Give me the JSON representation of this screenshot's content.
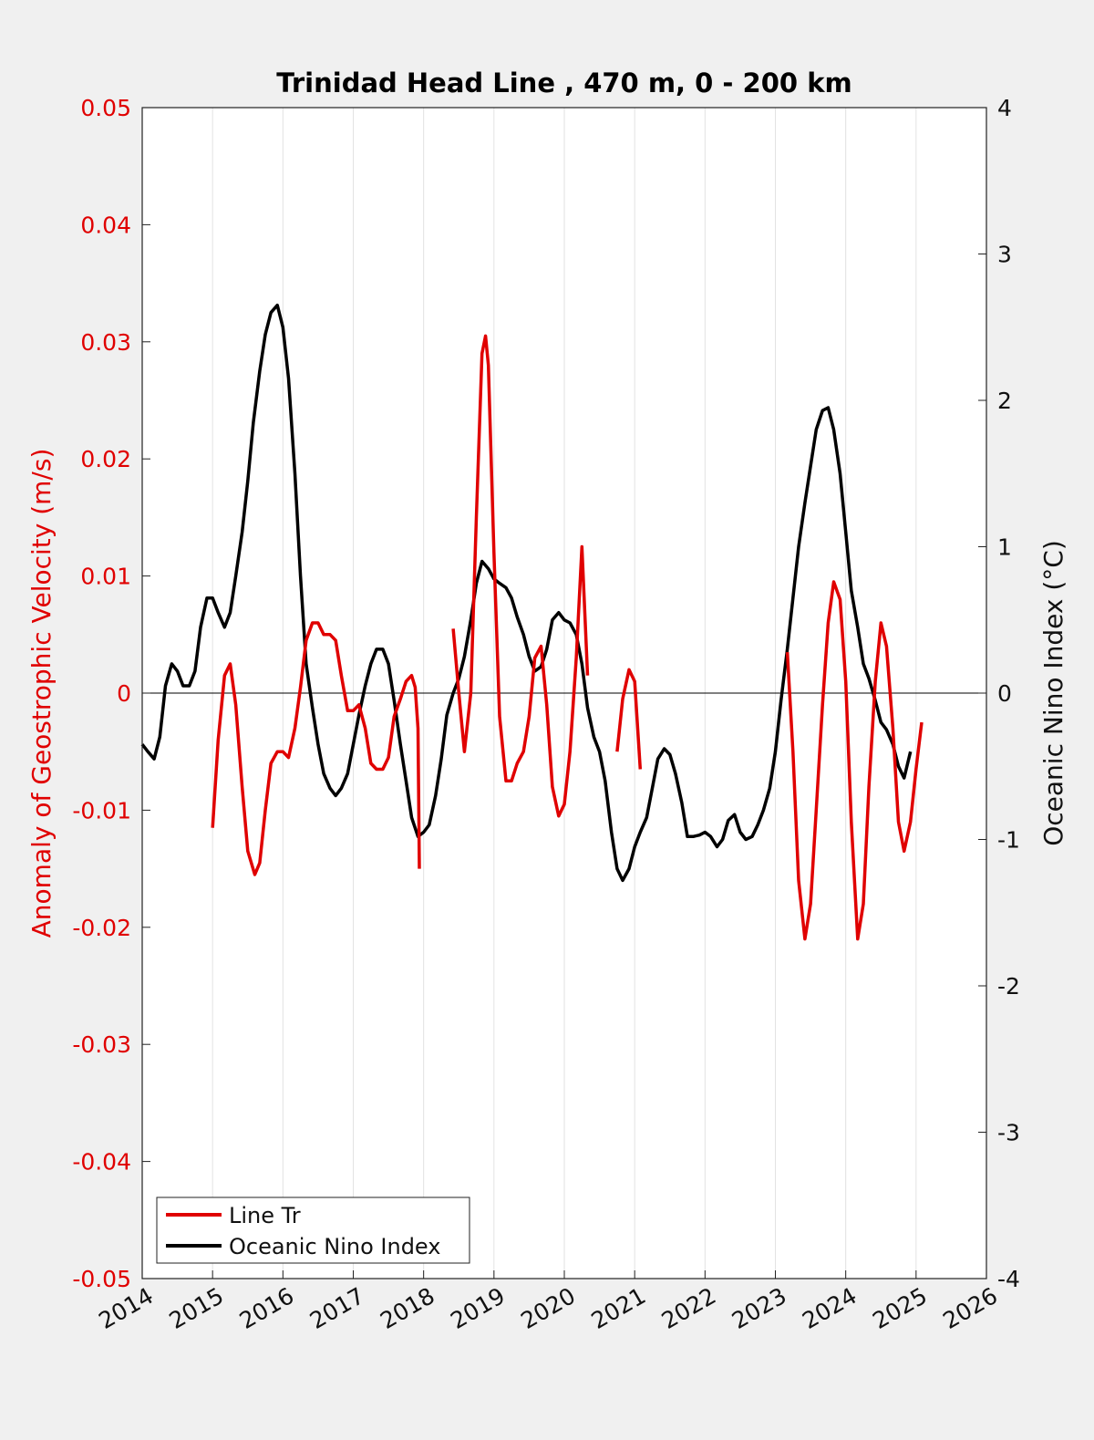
{
  "chart_data": {
    "type": "line",
    "title": "Trinidad Head Line , 470 m, 0 - 200 km",
    "ylabel_left": "Anomaly of Geostrophic Velocity (m/s)",
    "ylabel_right": "Oceanic Nino Index (°C)",
    "xlim": [
      2014,
      2026
    ],
    "ylim_left": [
      -0.05,
      0.05
    ],
    "ylim_right": [
      -4,
      4
    ],
    "x_ticks": [
      "2014",
      "2015",
      "2016",
      "2017",
      "2018",
      "2019",
      "2020",
      "2021",
      "2022",
      "2023",
      "2024",
      "2025",
      "2026"
    ],
    "y_ticks_left": [
      "0.05",
      "0.04",
      "0.03",
      "0.02",
      "0.01",
      "0",
      "-0.01",
      "-0.02",
      "-0.03",
      "-0.04",
      "-0.05"
    ],
    "y_ticks_right": [
      "4",
      "3",
      "2",
      "1",
      "0",
      "-1",
      "-2",
      "-3",
      "-4"
    ],
    "grid": "vertical",
    "legend": {
      "location": "bottom-left",
      "entries": [
        "Line Tr",
        "Oceanic Nino Index"
      ]
    },
    "colors": {
      "line_tr": "#e00000",
      "oni": "#000000",
      "left_axis": "#e00000",
      "zero_line": "#000000"
    },
    "series": [
      {
        "name": "Line Tr",
        "axis": "left",
        "segments": [
          [
            [
              2015.0,
              -0.0115
            ],
            [
              2015.08,
              -0.004
            ],
            [
              2015.17,
              0.0015
            ],
            [
              2015.25,
              0.0025
            ],
            [
              2015.33,
              -0.001
            ],
            [
              2015.42,
              -0.008
            ],
            [
              2015.5,
              -0.0135
            ],
            [
              2015.6,
              -0.0155
            ],
            [
              2015.67,
              -0.0145
            ],
            [
              2015.75,
              -0.01
            ],
            [
              2015.83,
              -0.006
            ],
            [
              2015.92,
              -0.005
            ],
            [
              2016.0,
              -0.005
            ],
            [
              2016.08,
              -0.0055
            ],
            [
              2016.17,
              -0.003
            ],
            [
              2016.25,
              0.0005
            ],
            [
              2016.33,
              0.0045
            ],
            [
              2016.42,
              0.006
            ],
            [
              2016.5,
              0.006
            ],
            [
              2016.58,
              0.005
            ],
            [
              2016.67,
              0.005
            ],
            [
              2016.75,
              0.0045
            ],
            [
              2016.83,
              0.0015
            ],
            [
              2016.92,
              -0.0015
            ],
            [
              2017.0,
              -0.0015
            ],
            [
              2017.08,
              -0.001
            ],
            [
              2017.17,
              -0.003
            ],
            [
              2017.25,
              -0.006
            ],
            [
              2017.33,
              -0.0065
            ],
            [
              2017.42,
              -0.0065
            ],
            [
              2017.5,
              -0.0055
            ],
            [
              2017.58,
              -0.002
            ],
            [
              2017.67,
              -0.0005
            ],
            [
              2017.75,
              0.001
            ],
            [
              2017.83,
              0.0015
            ],
            [
              2017.88,
              0.0005
            ],
            [
              2017.92,
              -0.003
            ],
            [
              2017.94,
              -0.015
            ]
          ],
          [
            [
              2018.42,
              0.0055
            ],
            [
              2018.5,
              0.0
            ],
            [
              2018.58,
              -0.005
            ],
            [
              2018.67,
              0.0
            ],
            [
              2018.75,
              0.015
            ],
            [
              2018.83,
              0.029
            ],
            [
              2018.88,
              0.0305
            ],
            [
              2018.92,
              0.028
            ],
            [
              2019.0,
              0.012
            ],
            [
              2019.08,
              -0.002
            ],
            [
              2019.17,
              -0.0075
            ],
            [
              2019.25,
              -0.0075
            ],
            [
              2019.33,
              -0.006
            ],
            [
              2019.42,
              -0.005
            ],
            [
              2019.5,
              -0.002
            ],
            [
              2019.58,
              0.003
            ],
            [
              2019.67,
              0.004
            ],
            [
              2019.75,
              -0.001
            ],
            [
              2019.83,
              -0.008
            ],
            [
              2019.92,
              -0.0105
            ],
            [
              2020.0,
              -0.0095
            ],
            [
              2020.08,
              -0.005
            ],
            [
              2020.17,
              0.003
            ],
            [
              2020.25,
              0.0125
            ],
            [
              2020.33,
              0.0015
            ]
          ],
          [
            [
              2020.75,
              -0.005
            ],
            [
              2020.83,
              -0.0005
            ],
            [
              2020.92,
              0.002
            ],
            [
              2021.0,
              0.001
            ],
            [
              2021.08,
              -0.0065
            ]
          ],
          [
            [
              2023.17,
              0.0035
            ],
            [
              2023.25,
              -0.005
            ],
            [
              2023.33,
              -0.016
            ],
            [
              2023.42,
              -0.021
            ],
            [
              2023.5,
              -0.018
            ],
            [
              2023.58,
              -0.01
            ],
            [
              2023.67,
              -0.001
            ],
            [
              2023.75,
              0.006
            ],
            [
              2023.83,
              0.0095
            ],
            [
              2023.92,
              0.008
            ],
            [
              2024.0,
              0.001
            ],
            [
              2024.08,
              -0.011
            ],
            [
              2024.17,
              -0.021
            ],
            [
              2024.25,
              -0.018
            ],
            [
              2024.33,
              -0.008
            ],
            [
              2024.42,
              0.001
            ],
            [
              2024.5,
              0.006
            ],
            [
              2024.58,
              0.004
            ],
            [
              2024.67,
              -0.003
            ],
            [
              2024.75,
              -0.011
            ],
            [
              2024.83,
              -0.0135
            ],
            [
              2024.92,
              -0.011
            ],
            [
              2025.0,
              -0.0065
            ],
            [
              2025.08,
              -0.0025
            ]
          ]
        ]
      },
      {
        "name": "Oceanic Nino Index",
        "axis": "right",
        "points": [
          [
            2014.0,
            -0.35
          ],
          [
            2014.08,
            -0.4
          ],
          [
            2014.17,
            -0.45
          ],
          [
            2014.25,
            -0.3
          ],
          [
            2014.33,
            0.05
          ],
          [
            2014.42,
            0.2
          ],
          [
            2014.5,
            0.15
          ],
          [
            2014.58,
            0.05
          ],
          [
            2014.67,
            0.05
          ],
          [
            2014.75,
            0.15
          ],
          [
            2014.83,
            0.45
          ],
          [
            2014.92,
            0.65
          ],
          [
            2015.0,
            0.65
          ],
          [
            2015.08,
            0.55
          ],
          [
            2015.17,
            0.45
          ],
          [
            2015.25,
            0.55
          ],
          [
            2015.33,
            0.8
          ],
          [
            2015.42,
            1.1
          ],
          [
            2015.5,
            1.45
          ],
          [
            2015.58,
            1.85
          ],
          [
            2015.67,
            2.2
          ],
          [
            2015.75,
            2.45
          ],
          [
            2015.83,
            2.6
          ],
          [
            2015.92,
            2.65
          ],
          [
            2016.0,
            2.5
          ],
          [
            2016.08,
            2.15
          ],
          [
            2016.17,
            1.5
          ],
          [
            2016.25,
            0.8
          ],
          [
            2016.33,
            0.2
          ],
          [
            2016.42,
            -0.1
          ],
          [
            2016.5,
            -0.35
          ],
          [
            2016.58,
            -0.55
          ],
          [
            2016.67,
            -0.65
          ],
          [
            2016.75,
            -0.7
          ],
          [
            2016.83,
            -0.65
          ],
          [
            2016.92,
            -0.55
          ],
          [
            2017.0,
            -0.35
          ],
          [
            2017.08,
            -0.15
          ],
          [
            2017.17,
            0.05
          ],
          [
            2017.25,
            0.2
          ],
          [
            2017.33,
            0.3
          ],
          [
            2017.42,
            0.3
          ],
          [
            2017.5,
            0.2
          ],
          [
            2017.58,
            -0.05
          ],
          [
            2017.67,
            -0.35
          ],
          [
            2017.75,
            -0.6
          ],
          [
            2017.83,
            -0.85
          ],
          [
            2017.92,
            -0.98
          ],
          [
            2018.0,
            -0.95
          ],
          [
            2018.08,
            -0.9
          ],
          [
            2018.17,
            -0.7
          ],
          [
            2018.25,
            -0.45
          ],
          [
            2018.33,
            -0.15
          ],
          [
            2018.42,
            0.0
          ],
          [
            2018.5,
            0.1
          ],
          [
            2018.58,
            0.25
          ],
          [
            2018.67,
            0.5
          ],
          [
            2018.75,
            0.75
          ],
          [
            2018.83,
            0.9
          ],
          [
            2018.92,
            0.85
          ],
          [
            2019.0,
            0.78
          ],
          [
            2019.08,
            0.75
          ],
          [
            2019.17,
            0.72
          ],
          [
            2019.25,
            0.65
          ],
          [
            2019.33,
            0.52
          ],
          [
            2019.42,
            0.4
          ],
          [
            2019.5,
            0.25
          ],
          [
            2019.58,
            0.15
          ],
          [
            2019.67,
            0.18
          ],
          [
            2019.75,
            0.3
          ],
          [
            2019.83,
            0.5
          ],
          [
            2019.92,
            0.55
          ],
          [
            2020.0,
            0.5
          ],
          [
            2020.08,
            0.48
          ],
          [
            2020.17,
            0.4
          ],
          [
            2020.25,
            0.2
          ],
          [
            2020.33,
            -0.1
          ],
          [
            2020.42,
            -0.3
          ],
          [
            2020.5,
            -0.4
          ],
          [
            2020.58,
            -0.6
          ],
          [
            2020.67,
            -0.95
          ],
          [
            2020.75,
            -1.2
          ],
          [
            2020.83,
            -1.28
          ],
          [
            2020.92,
            -1.2
          ],
          [
            2021.0,
            -1.05
          ],
          [
            2021.08,
            -0.95
          ],
          [
            2021.17,
            -0.85
          ],
          [
            2021.25,
            -0.65
          ],
          [
            2021.33,
            -0.45
          ],
          [
            2021.42,
            -0.38
          ],
          [
            2021.5,
            -0.42
          ],
          [
            2021.58,
            -0.55
          ],
          [
            2021.67,
            -0.75
          ],
          [
            2021.75,
            -0.98
          ],
          [
            2021.83,
            -0.98
          ],
          [
            2021.92,
            -0.97
          ],
          [
            2022.0,
            -0.95
          ],
          [
            2022.08,
            -0.98
          ],
          [
            2022.17,
            -1.05
          ],
          [
            2022.25,
            -1.0
          ],
          [
            2022.33,
            -0.87
          ],
          [
            2022.42,
            -0.83
          ],
          [
            2022.5,
            -0.95
          ],
          [
            2022.58,
            -1.0
          ],
          [
            2022.67,
            -0.98
          ],
          [
            2022.75,
            -0.9
          ],
          [
            2022.83,
            -0.8
          ],
          [
            2022.92,
            -0.65
          ],
          [
            2023.0,
            -0.4
          ],
          [
            2023.08,
            -0.05
          ],
          [
            2023.17,
            0.3
          ],
          [
            2023.25,
            0.65
          ],
          [
            2023.33,
            1.0
          ],
          [
            2023.42,
            1.3
          ],
          [
            2023.5,
            1.55
          ],
          [
            2023.58,
            1.8
          ],
          [
            2023.67,
            1.93
          ],
          [
            2023.75,
            1.95
          ],
          [
            2023.83,
            1.8
          ],
          [
            2023.92,
            1.5
          ],
          [
            2024.0,
            1.1
          ],
          [
            2024.08,
            0.7
          ],
          [
            2024.17,
            0.45
          ],
          [
            2024.25,
            0.2
          ],
          [
            2024.33,
            0.1
          ],
          [
            2024.42,
            -0.05
          ],
          [
            2024.5,
            -0.2
          ],
          [
            2024.58,
            -0.25
          ],
          [
            2024.67,
            -0.35
          ],
          [
            2024.75,
            -0.5
          ],
          [
            2024.83,
            -0.58
          ],
          [
            2024.92,
            -0.4
          ]
        ]
      }
    ]
  }
}
